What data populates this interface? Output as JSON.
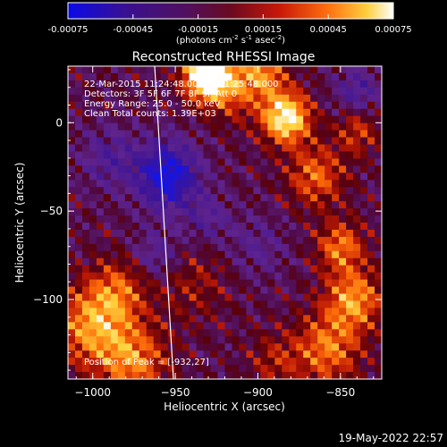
{
  "colorbar": {
    "ticks": [
      "-0.00075",
      "-0.00045",
      "-0.00015",
      "0.00015",
      "0.00045",
      "0.00075"
    ],
    "unit_parts": [
      "(photons cm",
      "-2",
      " s",
      "-1",
      " asec",
      "-2",
      ")"
    ]
  },
  "chart_data": {
    "type": "heatmap",
    "title": "Reconstructed RHESSI Image",
    "xlabel": "Heliocentric X (arcsec)",
    "ylabel": "Heliocentric Y (arcsec)",
    "xlim": [
      -1015,
      -825
    ],
    "ylim": [
      -145,
      32
    ],
    "xticks": [
      -1000,
      -950,
      -900,
      -850
    ],
    "yticks": [
      0,
      -50,
      -100
    ],
    "colorbar_range": [
      -0.00075,
      0.00075
    ],
    "annotations": [
      "22-Mar-2015 11:24:48.000 to 11:25:48.000",
      "Detectors: 3F 5F 6F 7F 8F 9F  Att 0",
      "Energy Range: 25.0 - 50.0 keV",
      "Clean     Total counts: 1.39E+03"
    ],
    "peak_label": "Position of Peak = [-932,27]",
    "peak": [
      -932,
      27
    ],
    "colorscale": [
      "blue",
      "purple",
      "red",
      "orange",
      "yellow",
      "white"
    ],
    "limb_line": true
  },
  "footer": {
    "date": "19-May-2022 22:57"
  }
}
